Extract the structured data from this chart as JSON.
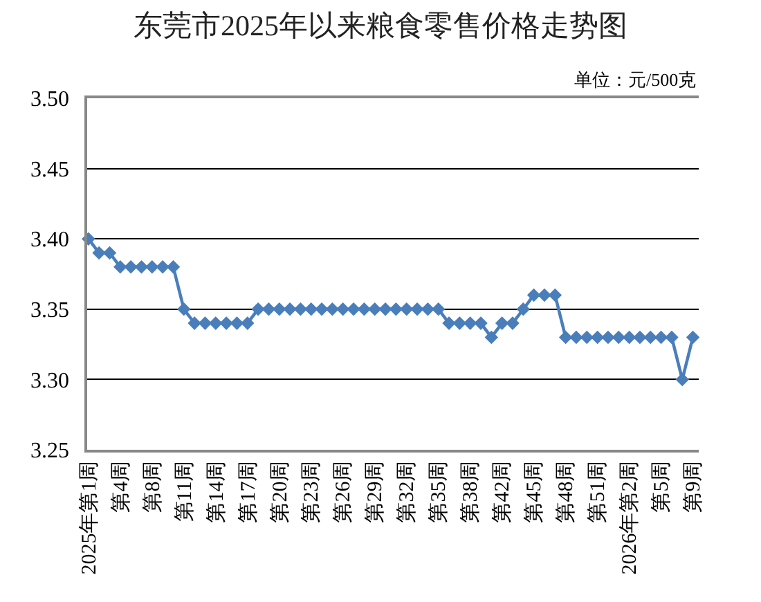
{
  "chart_data": {
    "type": "line",
    "title": "东莞市2025年以来粮食零售价格走势图",
    "annotations": [
      "单位：元/500克"
    ],
    "categories": [
      "2025年第1周",
      null,
      null,
      "第4周",
      null,
      null,
      "第8周",
      null,
      null,
      "第11周",
      null,
      null,
      "第14周",
      null,
      null,
      "第17周",
      null,
      null,
      "第20周",
      null,
      null,
      "第23周",
      null,
      null,
      "第26周",
      null,
      null,
      "第29周",
      null,
      null,
      "第32周",
      null,
      null,
      "第35周",
      null,
      null,
      "第38周",
      null,
      null,
      "第42周",
      null,
      null,
      "第45周",
      null,
      null,
      "第48周",
      null,
      null,
      "第51周",
      null,
      null,
      "2026年第2周",
      null,
      null,
      "第5周",
      null,
      null,
      "第9周"
    ],
    "series": [
      {
        "color": "#4a7ebb",
        "values": [
          3.4,
          3.39,
          3.39,
          3.38,
          3.38,
          3.38,
          3.38,
          3.38,
          3.38,
          3.35,
          3.34,
          3.34,
          3.34,
          3.34,
          3.34,
          3.34,
          3.35,
          3.35,
          3.35,
          3.35,
          3.35,
          3.35,
          3.35,
          3.35,
          3.35,
          3.35,
          3.35,
          3.35,
          3.35,
          3.35,
          3.35,
          3.35,
          3.35,
          3.35,
          3.34,
          3.34,
          3.34,
          3.34,
          3.33,
          3.34,
          3.34,
          3.35,
          3.36,
          3.36,
          3.36,
          3.33,
          3.33,
          3.33,
          3.33,
          3.33,
          3.33,
          3.33,
          3.33,
          3.33,
          3.33,
          3.33,
          3.3,
          3.33
        ]
      }
    ],
    "ylim": [
      3.25,
      3.5
    ],
    "yticks": [
      {
        "value": 3.25,
        "label": "3.25"
      },
      {
        "value": 3.3,
        "label": "3.30"
      },
      {
        "value": 3.35,
        "label": "3.35"
      },
      {
        "value": 3.4,
        "label": "3.40"
      },
      {
        "value": 3.45,
        "label": "3.45"
      },
      {
        "value": 3.5,
        "label": "3.50"
      }
    ],
    "grid": "y",
    "marker": "diamond",
    "line_style": "solid"
  }
}
